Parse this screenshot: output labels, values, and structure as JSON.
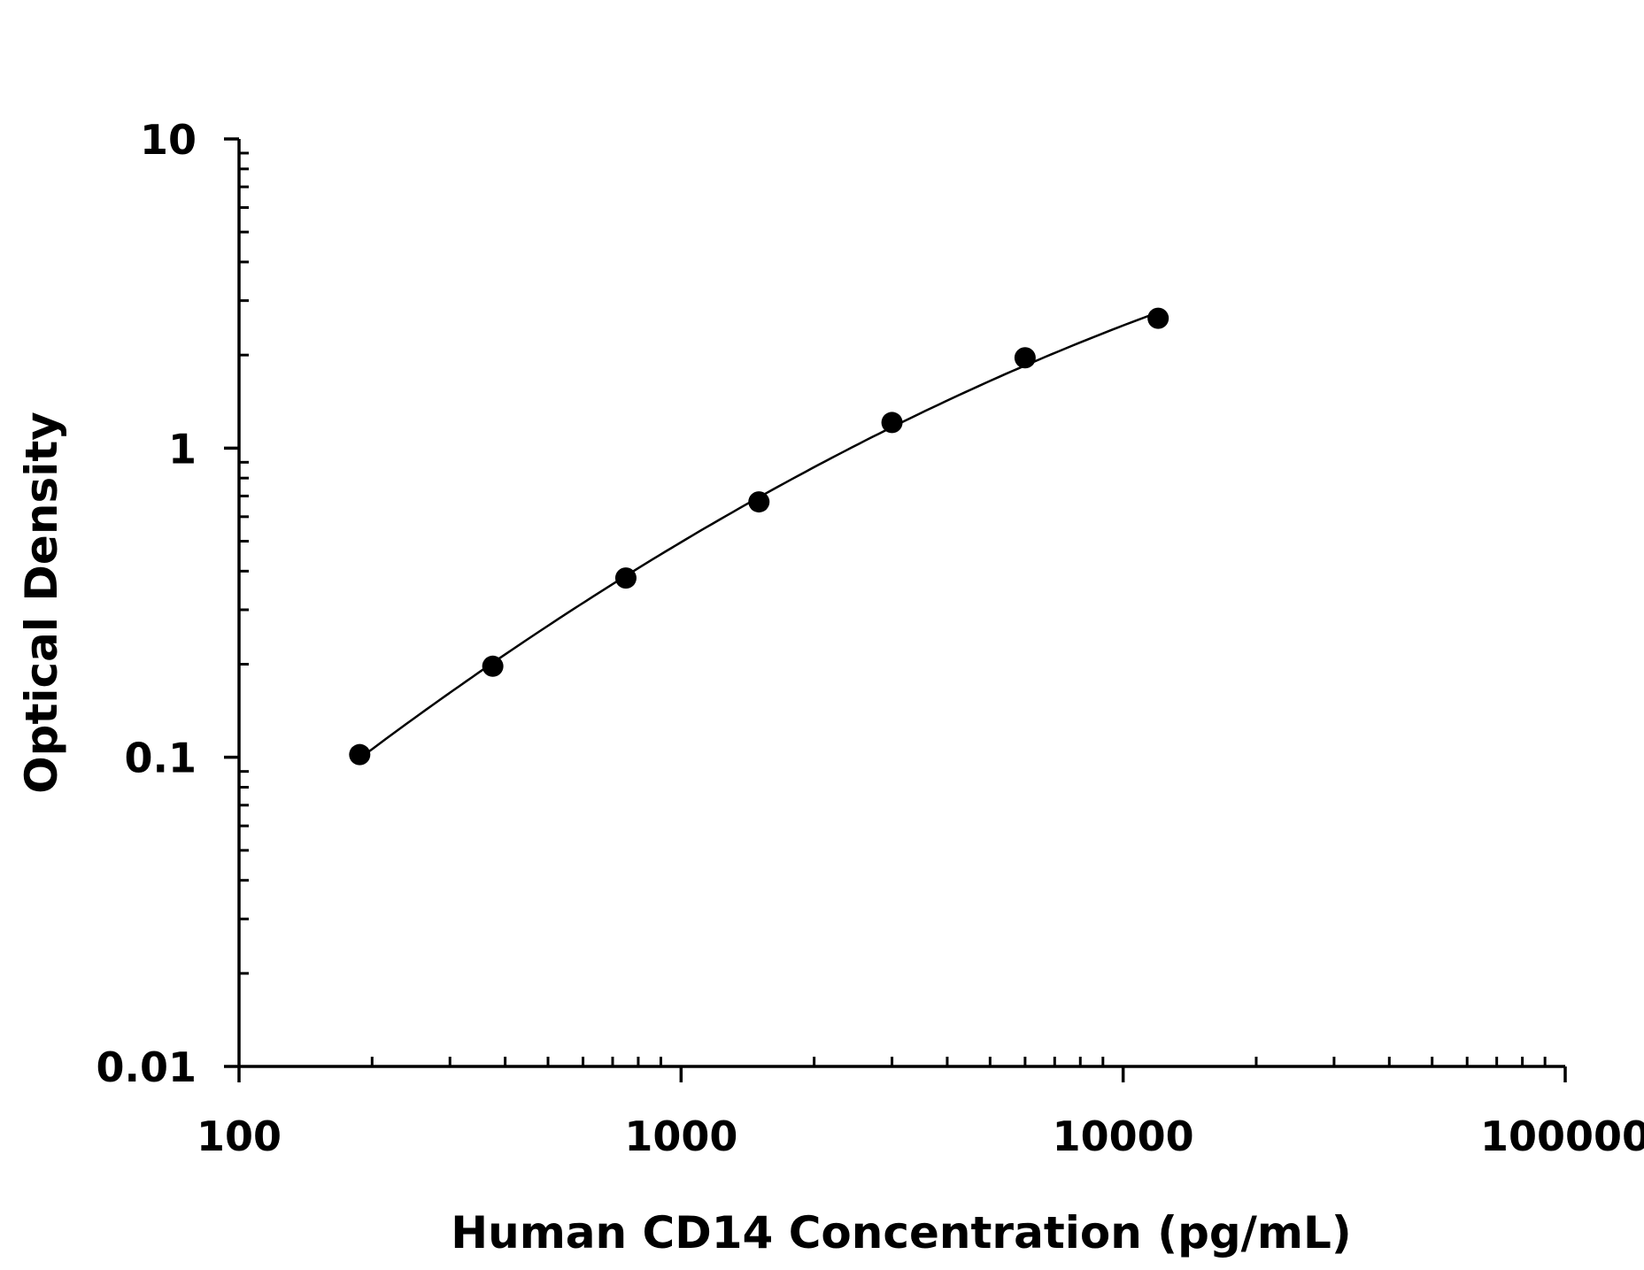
{
  "chart_data": {
    "type": "scatter",
    "title": "",
    "xlabel": "Human CD14 Concentration (pg/mL)",
    "ylabel": "Optical Density",
    "x_scale": "log",
    "y_scale": "log",
    "xlim": [
      100,
      100000
    ],
    "ylim": [
      0.01,
      10
    ],
    "x_ticks": [
      "100",
      "1000",
      "10000",
      "100000"
    ],
    "y_ticks": [
      "10",
      "1",
      "0.1",
      "0.01"
    ],
    "grid": false,
    "fit_curve": true,
    "series": [
      {
        "x": [
          187.5,
          375,
          750,
          1500,
          3000,
          6000,
          12000
        ],
        "y": [
          0.102,
          0.197,
          0.38,
          0.67,
          1.21,
          1.96,
          2.63
        ]
      }
    ],
    "colors": {
      "marker": "#000000",
      "line": "#000000",
      "axis": "#000000"
    }
  }
}
